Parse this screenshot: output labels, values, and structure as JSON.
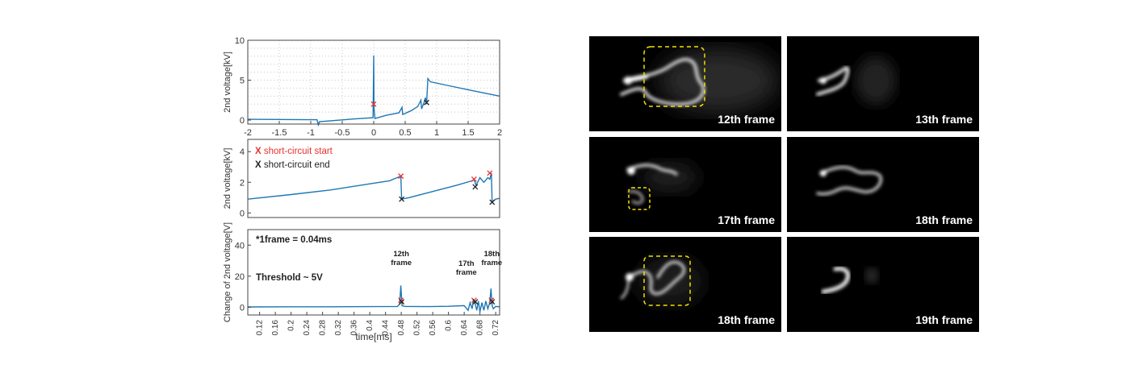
{
  "chart_data": [
    {
      "type": "line",
      "ylabel": "2nd voltage[kV]",
      "xlim": [
        -2,
        2
      ],
      "ylim": [
        -0.5,
        10
      ],
      "xticks": [
        -2,
        -1.5,
        -1,
        -0.5,
        0,
        0.5,
        1,
        1.5,
        2
      ],
      "yticks": [
        0,
        5,
        10
      ],
      "grid": true,
      "series": [
        {
          "color": "#1f77b4",
          "x": [
            -2,
            -0.9,
            -0.88,
            -0.86,
            -0.3,
            -0.01,
            0.0,
            0.005,
            0.02,
            0.2,
            0.4,
            0.45,
            0.46,
            0.6,
            0.7,
            0.75,
            0.76,
            0.8,
            0.82,
            0.84,
            0.86,
            0.9,
            1.2,
            1.5,
            2.0
          ],
          "y": [
            0.1,
            0.05,
            -0.6,
            -0.2,
            0.15,
            0.3,
            8.1,
            1.5,
            0.2,
            0.6,
            0.9,
            1.6,
            0.7,
            1.2,
            1.7,
            2.5,
            1.4,
            2.2,
            2.8,
            2.0,
            5.2,
            4.8,
            4.3,
            3.8,
            3.0
          ]
        }
      ],
      "markers": [
        {
          "x": 0.0,
          "y": 2.0,
          "color": "#e83030"
        },
        {
          "x": 0.84,
          "y": 2.2,
          "color": "#222222"
        }
      ]
    },
    {
      "type": "line",
      "ylabel": "2nd voltage[kV]",
      "xlim": [
        0.09,
        0.73
      ],
      "ylim": [
        -0.3,
        4.8
      ],
      "yticks": [
        0,
        2,
        4
      ],
      "grid": false,
      "legend": [
        {
          "marker": "X",
          "label": "short-circuit start",
          "color": "#e83030"
        },
        {
          "marker": "X",
          "label": "short-circuit end",
          "color": "#222222"
        }
      ],
      "series": [
        {
          "color": "#1f77b4",
          "x": [
            0.09,
            0.2,
            0.3,
            0.4,
            0.45,
            0.479,
            0.481,
            0.5,
            0.56,
            0.62,
            0.66,
            0.665,
            0.67,
            0.68,
            0.69,
            0.7,
            0.705,
            0.709,
            0.711,
            0.72,
            0.73
          ],
          "y": [
            0.9,
            1.2,
            1.5,
            1.9,
            2.1,
            2.4,
            0.9,
            1.0,
            1.4,
            1.8,
            2.1,
            2.2,
            1.8,
            2.3,
            2.0,
            2.3,
            2.2,
            2.6,
            0.7,
            0.9,
            0.95
          ]
        }
      ],
      "markers": [
        {
          "x": 0.479,
          "y": 2.4,
          "color": "#e83030"
        },
        {
          "x": 0.481,
          "y": 0.9,
          "color": "#222222"
        },
        {
          "x": 0.665,
          "y": 2.2,
          "color": "#e83030"
        },
        {
          "x": 0.668,
          "y": 1.7,
          "color": "#222222"
        },
        {
          "x": 0.705,
          "y": 2.6,
          "color": "#e83030"
        },
        {
          "x": 0.711,
          "y": 0.7,
          "color": "#222222"
        }
      ]
    },
    {
      "type": "line",
      "ylabel": "Change of 2nd voltage[V]",
      "xlabel": "time[ms]",
      "xlim": [
        0.09,
        0.73
      ],
      "ylim": [
        -5,
        50
      ],
      "xticks": [
        0.12,
        0.16,
        0.2,
        0.24,
        0.28,
        0.32,
        0.36,
        0.4,
        0.44,
        0.48,
        0.52,
        0.56,
        0.6,
        0.64,
        0.68,
        0.72
      ],
      "yticks": [
        0,
        20,
        40
      ],
      "grid": false,
      "annotations": [
        "*1frame = 0.04ms",
        "Threshold ~ 5V"
      ],
      "frame_labels": [
        {
          "x": 0.48,
          "label": "12th\nframe"
        },
        {
          "x": 0.67,
          "label": "17th\nframe"
        },
        {
          "x": 0.71,
          "label": "18th\nframe"
        }
      ],
      "series": [
        {
          "color": "#1f77b4",
          "x": [
            0.09,
            0.2,
            0.3,
            0.4,
            0.47,
            0.476,
            0.479,
            0.482,
            0.49,
            0.55,
            0.6,
            0.64,
            0.65,
            0.655,
            0.66,
            0.664,
            0.668,
            0.672,
            0.676,
            0.68,
            0.685,
            0.69,
            0.695,
            0.7,
            0.705,
            0.708,
            0.711,
            0.714,
            0.72,
            0.73
          ],
          "y": [
            0.2,
            0.3,
            0.3,
            0.4,
            0.5,
            2,
            14,
            1,
            0.5,
            0.4,
            0.6,
            1,
            -2,
            3,
            -1,
            5,
            2,
            -2,
            4,
            -3,
            3,
            -2,
            4,
            -1,
            3,
            12,
            1,
            -1,
            0.5,
            0.3
          ]
        }
      ],
      "markers": [
        {
          "x": 0.479,
          "y": 4.5,
          "color": "#e83030"
        },
        {
          "x": 0.481,
          "y": 3.5,
          "color": "#222222"
        },
        {
          "x": 0.665,
          "y": 4.5,
          "color": "#e83030"
        },
        {
          "x": 0.668,
          "y": 3.5,
          "color": "#222222"
        },
        {
          "x": 0.709,
          "y": 4.5,
          "color": "#e83030"
        },
        {
          "x": 0.711,
          "y": 3.5,
          "color": "#222222"
        }
      ]
    }
  ],
  "frames": [
    {
      "label": "12th frame",
      "highlight": true
    },
    {
      "label": "13th frame",
      "highlight": false
    },
    {
      "label": "17th frame",
      "highlight": true
    },
    {
      "label": "18th frame",
      "highlight": false
    },
    {
      "label": "18th frame",
      "highlight": true
    },
    {
      "label": "19th frame",
      "highlight": false
    }
  ]
}
